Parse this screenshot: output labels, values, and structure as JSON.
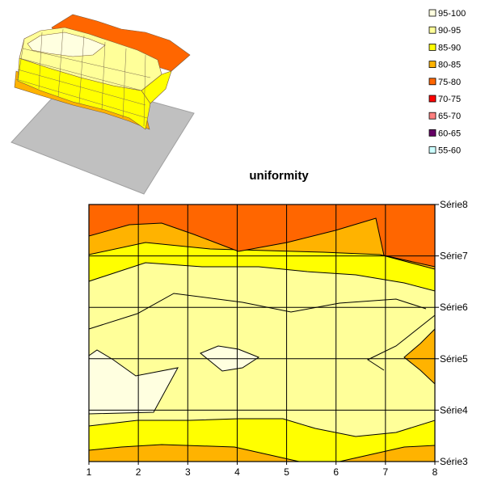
{
  "chart_data": [
    {
      "type": "surface",
      "view": "3d",
      "legend_position": "top-right",
      "legend": [
        {
          "label": "95-100",
          "color": "#FFFFE0"
        },
        {
          "label": "90-95",
          "color": "#FFFF99"
        },
        {
          "label": "85-90",
          "color": "#FFFF00"
        },
        {
          "label": "80-85",
          "color": "#FFB300"
        },
        {
          "label": "75-80",
          "color": "#FF6600"
        },
        {
          "label": "70-75",
          "color": "#FF0000"
        },
        {
          "label": "65-70",
          "color": "#FF8080"
        },
        {
          "label": "60-65",
          "color": "#660066"
        },
        {
          "label": "55-60",
          "color": "#CCFFFF"
        }
      ]
    },
    {
      "type": "contour",
      "title": "uniformity",
      "x": [
        "1",
        "2",
        "3",
        "4",
        "5",
        "6",
        "7",
        "8"
      ],
      "series": [
        "Série3",
        "Série4",
        "Série5",
        "Série6",
        "Série7",
        "Série8"
      ],
      "grid": true,
      "bands": [
        {
          "range": "75-80",
          "color": "#FF6600"
        },
        {
          "range": "80-85",
          "color": "#FFB300"
        },
        {
          "range": "85-90",
          "color": "#FFFF00"
        },
        {
          "range": "90-95",
          "color": "#FFFF99"
        },
        {
          "range": "95-100",
          "color": "#FFFFE0"
        }
      ]
    }
  ]
}
